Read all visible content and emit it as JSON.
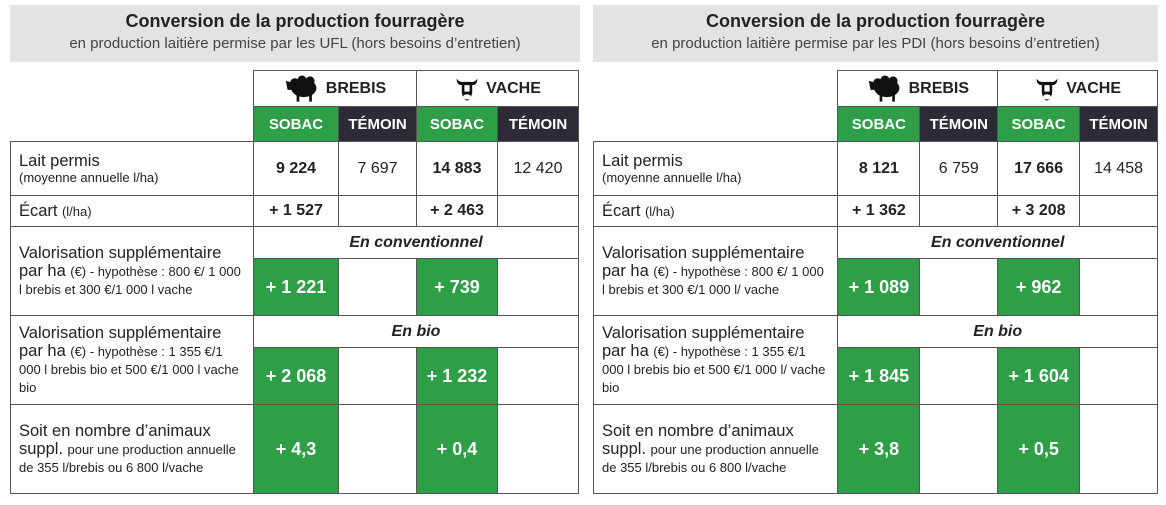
{
  "panels": [
    {
      "title": "Conversion de la production fourragère",
      "subtitle": "en production laitière permise par les UFL (hors besoins d’entretien)",
      "animals": [
        "BREBIS",
        "VACHE"
      ],
      "columns": [
        "SOBAC",
        "TÉMOIN",
        "SOBAC",
        "TÉMOIN"
      ],
      "rows": [
        {
          "label": "Lait permis",
          "detail": "(moyenne annuelle l/ha)",
          "values": [
            "9 224",
            "7 697",
            "14 883",
            "12 420"
          ]
        },
        {
          "label": "Écart",
          "detail": "(l/ha)",
          "values": [
            "+ 1 527",
            null,
            "+ 2 463",
            null
          ]
        },
        {
          "label": "Valorisation supplémentaire",
          "label2": "par ha",
          "detail": "(€) - hypothèse : 800 €/ 1 000 l brebis et 300 €/1 000 l vache",
          "section": "En conventionnel",
          "values": [
            "+ 1 221",
            null,
            "+ 739",
            null
          ]
        },
        {
          "label": "Valorisation supplémentaire",
          "label2": "par ha",
          "detail": "(€) - hypothèse : 1 355 €/1 000 l brebis bio et 500 €/1 000 l vache bio",
          "section": "En bio",
          "values": [
            "+ 2 068",
            null,
            "+ 1 232",
            null
          ]
        },
        {
          "label": "Soit en nombre d’animaux",
          "label2": "suppl.",
          "detail": "pour une production annuelle de 355 l/brebis ou 6 800 l/vache",
          "values": [
            "+ 4,3",
            null,
            "+ 0,4",
            null
          ]
        }
      ]
    },
    {
      "title": "Conversion de la production fourragère",
      "subtitle": "en production laitière permise par les PDI (hors besoins d’entretien)",
      "animals": [
        "BREBIS",
        "VACHE"
      ],
      "columns": [
        "SOBAC",
        "TÉMOIN",
        "SOBAC",
        "TÉMOIN"
      ],
      "rows": [
        {
          "label": "Lait permis",
          "detail": "(moyenne annuelle l/ha)",
          "values": [
            "8 121",
            "6 759",
            "17 666",
            "14 458"
          ]
        },
        {
          "label": "Écart",
          "detail": "(l/ha)",
          "values": [
            "+ 1 362",
            null,
            "+ 3 208",
            null
          ]
        },
        {
          "label": "Valorisation supplémentaire",
          "label2": "par ha",
          "detail": "(€) - hypothèse : 800 €/ 1 000 l brebis et 300 €/1 000 l/ vache",
          "section": "En conventionnel",
          "values": [
            "+ 1 089",
            null,
            "+ 962",
            null
          ]
        },
        {
          "label": "Valorisation supplémentaire",
          "label2": "par ha",
          "detail": "(€) - hypothèse : 1 355 €/1 000 l brebis bio et 500 €/1 000 l/ vache bio",
          "section": "En bio",
          "values": [
            "+ 1 845",
            null,
            "+ 1 604",
            null
          ]
        },
        {
          "label": "Soit en nombre d’animaux",
          "label2": "suppl.",
          "detail": "pour une production annuelle de 355 l/brebis ou 6 800 l/vache",
          "values": [
            "+ 3,8",
            null,
            "+ 0,5",
            null
          ]
        }
      ]
    }
  ]
}
